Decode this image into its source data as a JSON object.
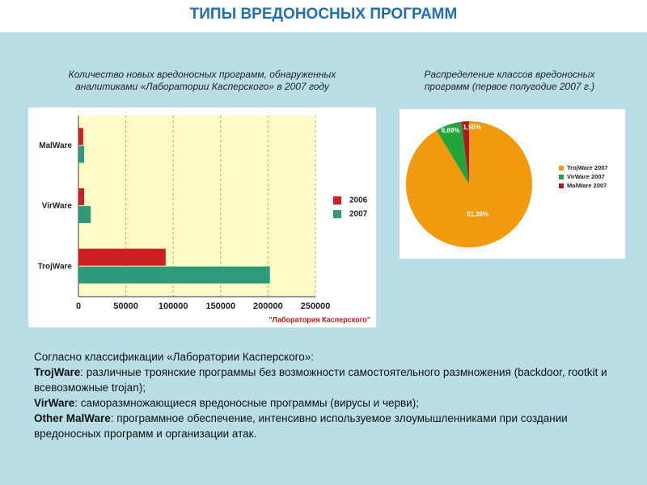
{
  "slide_title": "ТИПЫ ВРЕДОНОСНЫХ ПРОГРАММ",
  "chart_data": [
    {
      "type": "hbar",
      "title": "Количество новых вредоносных программ, обнаруженных аналитиками «Лаборатории Касперского» в 2007 году",
      "categories": [
        "MalWare",
        "VirWare",
        "TrojWare"
      ],
      "series": [
        {
          "name": "2006",
          "color": "#cc2020",
          "values": [
            5000,
            6000,
            92000
          ]
        },
        {
          "name": "2007",
          "color": "#2e9a7a",
          "values": [
            6000,
            13000,
            202000
          ]
        }
      ],
      "xlim": [
        0,
        250000
      ],
      "xticks": [
        0,
        50000,
        100000,
        150000,
        200000,
        250000
      ],
      "grid": true,
      "legend": "right",
      "annotation": "\"Лаборатория Касперского\""
    },
    {
      "type": "pie",
      "title": "Распределение классов вредоносных программ (первое полугодие 2007 г.)",
      "categories": [
        "TrojWare 2007",
        "VirWare 2007",
        "MalWare 2007"
      ],
      "values": [
        91.36,
        6.69,
        1.95
      ],
      "value_labels": [
        "91,36%",
        "6,69%",
        "1,95%"
      ],
      "colors": [
        "#f29a0e",
        "#1fa63a",
        "#b01818"
      ],
      "legend": "right"
    }
  ],
  "text": {
    "intro": "Согласно классификации «Лаборатории Касперского»:",
    "items": [
      {
        "term": "TrojWare",
        "desc": ": различные троянские программы без возможности самостоятельного размножения (backdoor, rootkit и всевозможные trojan);"
      },
      {
        "term": "VirWare",
        "desc": ": саморазмножающиеся вредоносные программы (вирусы и черви);"
      },
      {
        "term": "Other MalWare",
        "desc": ": программное обеспечение, интенсивно используемое злоумышленниками при создании вредоносных программ и организации атак."
      }
    ]
  }
}
